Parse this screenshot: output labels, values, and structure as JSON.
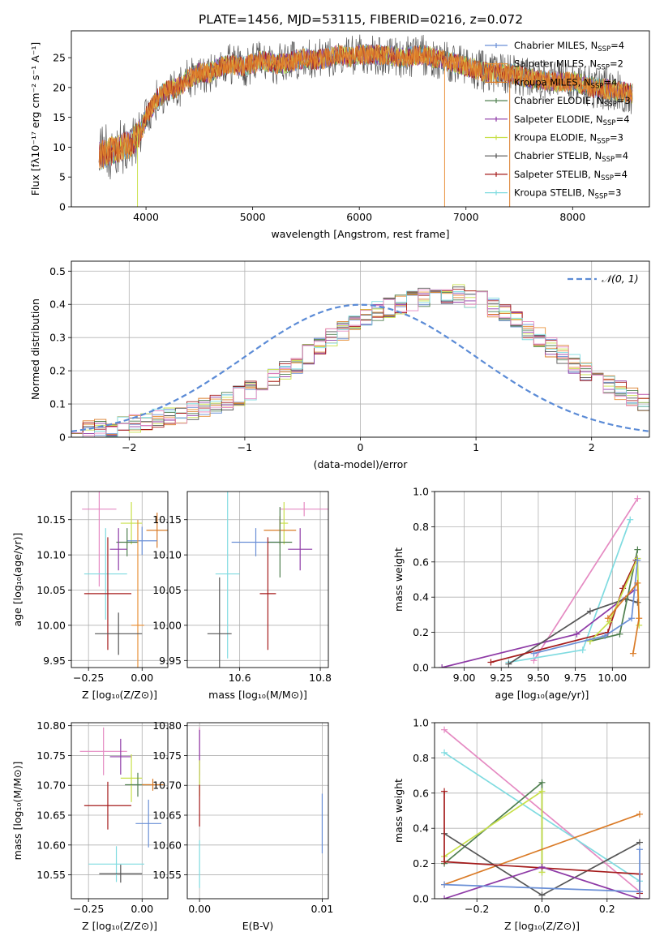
{
  "figure_title": "PLATE=1456, MJD=53115, FIBERID=0216, z=0.072",
  "legend_colors": {
    "Chabrier MILES": "#6a8fd6",
    "Salpeter MILES": "#e8913a",
    "Kroupa MILES": "#da7b27",
    "Chabrier ELODIE": "#4f7f4f",
    "Salpeter ELODIE": "#8e3aa6",
    "Kroupa ELODIE": "#c8e04a",
    "Chabrier STELIB": "#555555",
    "Salpeter STELIB": "#a51c1c",
    "Kroupa STELIB": "#7fdbe0",
    "pink": "#e58ac2",
    "gaussian": "#5b8bd6"
  },
  "chart_data": [
    {
      "id": "spectrum",
      "type": "line",
      "xlabel": "wavelength [Angstrom, rest frame]",
      "ylabel": "Flux [fλ10⁻¹⁷ erg cm⁻² s⁻¹ A⁻¹]",
      "xlim": [
        3300,
        8720
      ],
      "ylim": [
        0,
        29.5
      ],
      "xticks": [
        4000,
        5000,
        6000,
        7000,
        8000
      ],
      "yticks": [
        0,
        5,
        10,
        15,
        20,
        25
      ],
      "grid": false,
      "legend": "top-right",
      "continuum": {
        "x": [
          3560,
          3700,
          3850,
          3950,
          4000,
          4100,
          4200,
          4300,
          4400,
          4500,
          4600,
          4700,
          4800,
          4900,
          5000,
          5100,
          5200,
          5300,
          5400,
          5500,
          5600,
          5700,
          5800,
          5900,
          6000,
          6200,
          6400,
          6600,
          6800,
          7000,
          7200,
          7400,
          7600,
          7800,
          8000,
          8200,
          8400,
          8550
        ],
        "y": [
          8.5,
          9.5,
          10.5,
          12.5,
          15.0,
          18.0,
          19.5,
          20.0,
          21.5,
          22.5,
          22.5,
          23.5,
          24.0,
          23.5,
          24.0,
          24.5,
          24.0,
          24.0,
          24.5,
          25.0,
          24.5,
          25.0,
          25.5,
          25.0,
          25.5,
          25.5,
          25.0,
          25.5,
          24.5,
          23.5,
          22.5,
          22.5,
          21.5,
          21.0,
          21.0,
          20.0,
          19.5,
          19.0
        ]
      },
      "series": [
        {
          "name": "Chabrier MILES, N$_{SSP}$=4",
          "label_main": "Chabrier MILES, N",
          "label_sub": "SSP",
          "label_tail": "=4",
          "color": "#6a8fd6"
        },
        {
          "name": "Salpeter MILES, N$_{SSP}$=2",
          "label_main": "Salpeter MILES, N",
          "label_sub": "SSP",
          "label_tail": "=2",
          "color": "#e8913a"
        },
        {
          "name": "Kroupa MILES, N$_{SSP}$=4",
          "label_main": "Kroupa MILES, N",
          "label_sub": "SSP",
          "label_tail": "=4",
          "color": "#da7b27"
        },
        {
          "name": "Chabrier ELODIE, N$_{SSP}$=3",
          "label_main": "Chabrier ELODIE, N",
          "label_sub": "SSP",
          "label_tail": "=3",
          "color": "#4f7f4f"
        },
        {
          "name": "Salpeter ELODIE, N$_{SSP}$=4",
          "label_main": "Salpeter ELODIE, N",
          "label_sub": "SSP",
          "label_tail": "=4",
          "color": "#8e3aa6"
        },
        {
          "name": "Kroupa ELODIE, N$_{SSP}$=3",
          "label_main": "Kroupa ELODIE, N",
          "label_sub": "SSP",
          "label_tail": "=3",
          "color": "#c8e04a"
        },
        {
          "name": "Chabrier STELIB, N$_{SSP}$=4",
          "label_main": "Chabrier STELIB, N",
          "label_sub": "SSP",
          "label_tail": "=4",
          "color": "#555555"
        },
        {
          "name": "Salpeter STELIB, N$_{SSP}$=4",
          "label_main": "Salpeter STELIB, N",
          "label_sub": "SSP",
          "label_tail": "=4",
          "color": "#a51c1c"
        },
        {
          "name": "Kroupa STELIB, N$_{SSP}$=3",
          "label_main": "Kroupa STELIB, N",
          "label_sub": "SSP",
          "label_tail": "=3",
          "color": "#7fdbe0"
        }
      ]
    },
    {
      "id": "residuals",
      "type": "line",
      "xlabel": "(data-model)/error",
      "ylabel": "Normed distribution",
      "xlim": [
        -2.5,
        2.5
      ],
      "ylim": [
        0,
        0.53
      ],
      "xticks": [
        -2,
        -1,
        0,
        1,
        2
      ],
      "yticks": [
        0.0,
        0.1,
        0.2,
        0.3,
        0.4,
        0.5
      ],
      "grid": true,
      "legend": "top-right",
      "legend_label": "𝒩(0, 1)",
      "bin_width": 0.1,
      "bin_start": -2.5,
      "histogram_values": [
        0.015,
        0.02,
        0.025,
        0.03,
        0.035,
        0.04,
        0.048,
        0.055,
        0.062,
        0.07,
        0.08,
        0.09,
        0.1,
        0.11,
        0.125,
        0.14,
        0.16,
        0.18,
        0.2,
        0.22,
        0.25,
        0.27,
        0.3,
        0.32,
        0.34,
        0.36,
        0.38,
        0.39,
        0.4,
        0.41,
        0.42,
        0.43,
        0.43,
        0.43,
        0.42,
        0.41,
        0.39,
        0.37,
        0.35,
        0.32,
        0.3,
        0.27,
        0.25,
        0.22,
        0.2,
        0.18,
        0.16,
        0.14,
        0.12,
        0.1,
        0.09,
        0.08,
        0.065,
        0.055,
        0.045,
        0.035,
        0.03,
        0.025,
        0.02,
        0.015,
        0.012,
        0.01
      ],
      "series_colors": [
        "#6a8fd6",
        "#e8913a",
        "#da7b27",
        "#4f7f4f",
        "#8e3aa6",
        "#c8e04a",
        "#555555",
        "#a51c1c",
        "#7fdbe0",
        "#e58ac2"
      ]
    },
    {
      "id": "age_vs_Z",
      "type": "scatter",
      "xlabel": "Z [log₁₀(Z/Z⊙)]",
      "ylabel": "age  [log₁₀(age/yr)]",
      "xlim": [
        -0.33,
        0.12
      ],
      "ylim": [
        9.94,
        10.19
      ],
      "xticks": [
        -0.25,
        0.0
      ],
      "xtick_labels": [
        "−0.25",
        "0.00"
      ],
      "yticks": [
        9.95,
        10.0,
        10.05,
        10.1,
        10.15
      ],
      "ytick_labels": [
        "9.95",
        "10.00",
        "10.05",
        "10.10",
        "10.15"
      ],
      "grid": true,
      "points": [
        {
          "x": -0.2,
          "y": 10.165,
          "xerr": 0.08,
          "yerr": 0.11,
          "color": "#e58ac2"
        },
        {
          "x": -0.05,
          "y": 10.145,
          "xerr": 0.05,
          "yerr": 0.03,
          "color": "#c8e04a"
        },
        {
          "x": 0.07,
          "y": 10.135,
          "xerr": 0.05,
          "yerr": 0.025,
          "color": "#da7b27"
        },
        {
          "x": 0.0,
          "y": 10.12,
          "xerr": 0.07,
          "yerr": 0.02,
          "color": "#6a8fd6"
        },
        {
          "x": -0.07,
          "y": 10.118,
          "xerr": 0.05,
          "yerr": 0.02,
          "color": "#4f7f4f"
        },
        {
          "x": -0.11,
          "y": 10.108,
          "xerr": 0.04,
          "yerr": 0.03,
          "color": "#8e3aa6"
        },
        {
          "x": -0.17,
          "y": 10.073,
          "xerr": 0.1,
          "yerr": 0.065,
          "color": "#7fdbe0"
        },
        {
          "x": -0.16,
          "y": 10.045,
          "xerr": 0.11,
          "yerr": 0.08,
          "color": "#a51c1c"
        },
        {
          "x": -0.02,
          "y": 10.0,
          "xerr": 0.03,
          "yerr": 0.15,
          "color": "#e8913a"
        },
        {
          "x": -0.11,
          "y": 9.988,
          "xerr": 0.11,
          "yerr": 0.03,
          "color": "#555555"
        }
      ]
    },
    {
      "id": "age_vs_mass",
      "type": "scatter",
      "xlabel": "mass [log₁₀(M/M⊙)]",
      "ylabel": "",
      "xlim": [
        10.47,
        10.82
      ],
      "ylim": [
        9.94,
        10.19
      ],
      "xticks": [
        10.6,
        10.8
      ],
      "xtick_labels": [
        "10.6",
        "10.8"
      ],
      "yticks": [
        9.95,
        10.0,
        10.05,
        10.1,
        10.15
      ],
      "ytick_labels": [
        "9.95",
        "10.00",
        "10.05",
        "10.10",
        "10.15"
      ],
      "grid": true,
      "points": [
        {
          "x": 10.76,
          "y": 10.165,
          "xerr": 0.06,
          "yerr": 0.01,
          "color": "#e58ac2"
        },
        {
          "x": 10.71,
          "y": 10.145,
          "xerr": 0.01,
          "yerr": 0.03,
          "color": "#c8e04a"
        },
        {
          "x": 10.7,
          "y": 10.135,
          "xerr": 0.04,
          "yerr": 0.02,
          "color": "#da7b27"
        },
        {
          "x": 10.64,
          "y": 10.118,
          "xerr": 0.06,
          "yerr": 0.02,
          "color": "#6a8fd6"
        },
        {
          "x": 10.7,
          "y": 10.118,
          "xerr": 0.03,
          "yerr": 0.05,
          "color": "#4f7f4f"
        },
        {
          "x": 10.75,
          "y": 10.108,
          "xerr": 0.03,
          "yerr": 0.03,
          "color": "#8e3aa6"
        },
        {
          "x": 10.57,
          "y": 10.073,
          "xerr": 0.03,
          "yerr": 0.12,
          "color": "#7fdbe0"
        },
        {
          "x": 10.67,
          "y": 10.045,
          "xerr": 0.02,
          "yerr": 0.08,
          "color": "#a51c1c"
        },
        {
          "x": 10.55,
          "y": 9.988,
          "xerr": 0.03,
          "yerr": 0.08,
          "color": "#555555"
        }
      ]
    },
    {
      "id": "weight_vs_age",
      "type": "line",
      "xlabel": "age  [log₁₀(age/yr)]",
      "ylabel": "mass weight",
      "xlim": [
        8.8,
        10.25
      ],
      "ylim": [
        0,
        1
      ],
      "xticks": [
        9.0,
        9.25,
        9.5,
        9.75,
        10.0
      ],
      "xtick_labels": [
        "9.00",
        "9.25",
        "9.50",
        "9.75",
        "10.00"
      ],
      "yticks": [
        0.0,
        0.2,
        0.4,
        0.6,
        0.8,
        1.0
      ],
      "ytick_labels": [
        "0.0",
        "0.2",
        "0.4",
        "0.6",
        "0.8",
        "1.0"
      ],
      "grid": true,
      "series": [
        {
          "color": "#e58ac2",
          "x": [
            9.47,
            10.17
          ],
          "y": [
            0.04,
            0.96
          ]
        },
        {
          "color": "#7fdbe0",
          "x": [
            9.3,
            9.8,
            10.12
          ],
          "y": [
            0.03,
            0.1,
            0.84
          ]
        },
        {
          "color": "#8e3aa6",
          "x": [
            8.85,
            9.76,
            10.15
          ],
          "y": [
            0.0,
            0.19,
            0.44
          ]
        },
        {
          "color": "#555555",
          "x": [
            9.3,
            9.85,
            10.09,
            10.17
          ],
          "y": [
            0.02,
            0.32,
            0.39,
            0.37
          ]
        },
        {
          "color": "#4f7f4f",
          "x": [
            9.85,
            10.05,
            10.17
          ],
          "y": [
            0.15,
            0.19,
            0.67
          ]
        },
        {
          "color": "#a51c1c",
          "x": [
            9.18,
            9.97,
            10.07,
            10.16
          ],
          "y": [
            0.03,
            0.2,
            0.45,
            0.61
          ]
        },
        {
          "color": "#c8e04a",
          "x": [
            9.85,
            9.98,
            10.17,
            10.18
          ],
          "y": [
            0.15,
            0.26,
            0.62,
            0.24
          ]
        },
        {
          "color": "#6a8fd6",
          "x": [
            9.47,
            9.95,
            10.13,
            10.17
          ],
          "y": [
            0.08,
            0.18,
            0.28,
            0.61
          ]
        },
        {
          "color": "#da7b27",
          "x": [
            9.97,
            10.17,
            10.18,
            10.14
          ],
          "y": [
            0.28,
            0.48,
            0.28,
            0.08
          ]
        }
      ]
    },
    {
      "id": "mass_vs_Z",
      "type": "scatter",
      "xlabel": "Z [log₁₀(Z/Z⊙)]",
      "ylabel": "mass [log₁₀(M/M⊙)]",
      "xlim": [
        -0.33,
        0.12
      ],
      "ylim": [
        10.51,
        10.805
      ],
      "xticks": [
        -0.25,
        0.0
      ],
      "xtick_labels": [
        "−0.25",
        "0.00"
      ],
      "yticks": [
        10.55,
        10.6,
        10.65,
        10.7,
        10.75,
        10.8
      ],
      "ytick_labels": [
        "10.55",
        "10.60",
        "10.65",
        "10.70",
        "10.75",
        "10.80"
      ],
      "grid": true,
      "points": [
        {
          "x": -0.18,
          "y": 10.757,
          "xerr": 0.11,
          "yerr": 0.04,
          "color": "#e58ac2"
        },
        {
          "x": -0.1,
          "y": 10.748,
          "xerr": 0.05,
          "yerr": 0.03,
          "color": "#8e3aa6"
        },
        {
          "x": -0.05,
          "y": 10.712,
          "xerr": 0.05,
          "yerr": 0.04,
          "color": "#c8e04a"
        },
        {
          "x": -0.02,
          "y": 10.701,
          "xerr": 0.06,
          "yerr": 0.02,
          "color": "#4f7f4f"
        },
        {
          "x": 0.05,
          "y": 10.701,
          "xerr": 0.05,
          "yerr": 0.01,
          "color": "#da7b27"
        },
        {
          "x": -0.16,
          "y": 10.666,
          "xerr": 0.11,
          "yerr": 0.04,
          "color": "#a51c1c"
        },
        {
          "x": 0.03,
          "y": 10.636,
          "xerr": 0.06,
          "yerr": 0.04,
          "color": "#6a8fd6"
        },
        {
          "x": -0.12,
          "y": 10.568,
          "xerr": 0.13,
          "yerr": 0.03,
          "color": "#7fdbe0"
        },
        {
          "x": -0.1,
          "y": 10.552,
          "xerr": 0.1,
          "yerr": 0.015,
          "color": "#555555"
        }
      ]
    },
    {
      "id": "mass_vs_EBV",
      "type": "scatter",
      "xlabel": "E(B-V)",
      "ylabel": "",
      "xlim": [
        -0.001,
        0.0105
      ],
      "ylim": [
        10.51,
        10.805
      ],
      "xticks": [
        0.0,
        0.01
      ],
      "xtick_labels": [
        "0.00",
        "0.01"
      ],
      "yticks": [
        10.55,
        10.6,
        10.65,
        10.7,
        10.75,
        10.8
      ],
      "ytick_labels": [
        "10.55",
        "10.60",
        "10.65",
        "10.70",
        "10.75",
        "10.80"
      ],
      "grid": true,
      "points": [
        {
          "x": 0.0,
          "y": 10.757,
          "xerr": 0,
          "yerr": 0.04,
          "color": "#e58ac2"
        },
        {
          "x": 0.0,
          "y": 10.748,
          "xerr": 0,
          "yerr": 0.045,
          "color": "#8e3aa6"
        },
        {
          "x": 0.0,
          "y": 10.712,
          "xerr": 0,
          "yerr": 0.03,
          "color": "#c8e04a"
        },
        {
          "x": 0.0,
          "y": 10.666,
          "xerr": 0,
          "yerr": 0.035,
          "color": "#a51c1c"
        },
        {
          "x": 0.0,
          "y": 10.568,
          "xerr": 0,
          "yerr": 0.04,
          "color": "#7fdbe0"
        },
        {
          "x": 0.01,
          "y": 10.636,
          "xerr": 0,
          "yerr": 0.05,
          "color": "#6a8fd6"
        }
      ]
    },
    {
      "id": "weight_vs_Z",
      "type": "line",
      "xlabel": "Z [log₁₀(Z/Z⊙)]",
      "ylabel": "mass weight",
      "xlim": [
        -0.33,
        0.33
      ],
      "ylim": [
        0,
        1
      ],
      "xticks": [
        -0.2,
        0.0,
        0.2
      ],
      "xtick_labels": [
        "−0.2",
        "0.0",
        "0.2"
      ],
      "yticks": [
        0.0,
        0.2,
        0.4,
        0.6,
        0.8,
        1.0
      ],
      "ytick_labels": [
        "0.0",
        "0.2",
        "0.4",
        "0.6",
        "0.8",
        "1.0"
      ],
      "grid": true,
      "series": [
        {
          "color": "#e58ac2",
          "x": [
            -0.3,
            0.3
          ],
          "y": [
            0.96,
            0.04
          ]
        },
        {
          "color": "#7fdbe0",
          "x": [
            -0.3,
            0.3
          ],
          "y": [
            0.83,
            0.1
          ]
        },
        {
          "color": "#4f7f4f",
          "x": [
            -0.3,
            0.0,
            0.0
          ],
          "y": [
            0.2,
            0.66,
            0.15
          ]
        },
        {
          "color": "#c8e04a",
          "x": [
            -0.3,
            0.0,
            0.0
          ],
          "y": [
            0.24,
            0.61,
            0.15
          ]
        },
        {
          "color": "#da7b27",
          "x": [
            -0.3,
            0.3
          ],
          "y": [
            0.08,
            0.48
          ]
        },
        {
          "color": "#555555",
          "x": [
            -0.3,
            0.0,
            0.3
          ],
          "y": [
            0.37,
            0.02,
            0.32
          ]
        },
        {
          "color": "#a51c1c",
          "x": [
            -0.3,
            -0.3,
            0.3,
            0.3
          ],
          "y": [
            0.61,
            0.21,
            0.14,
            0.03
          ]
        },
        {
          "color": "#8e3aa6",
          "x": [
            -0.3,
            0.0,
            0.3
          ],
          "y": [
            0.0,
            0.18,
            0.0
          ]
        },
        {
          "color": "#6a8fd6",
          "x": [
            -0.3,
            0.3,
            0.3
          ],
          "y": [
            0.08,
            0.04,
            0.28
          ]
        }
      ]
    }
  ]
}
